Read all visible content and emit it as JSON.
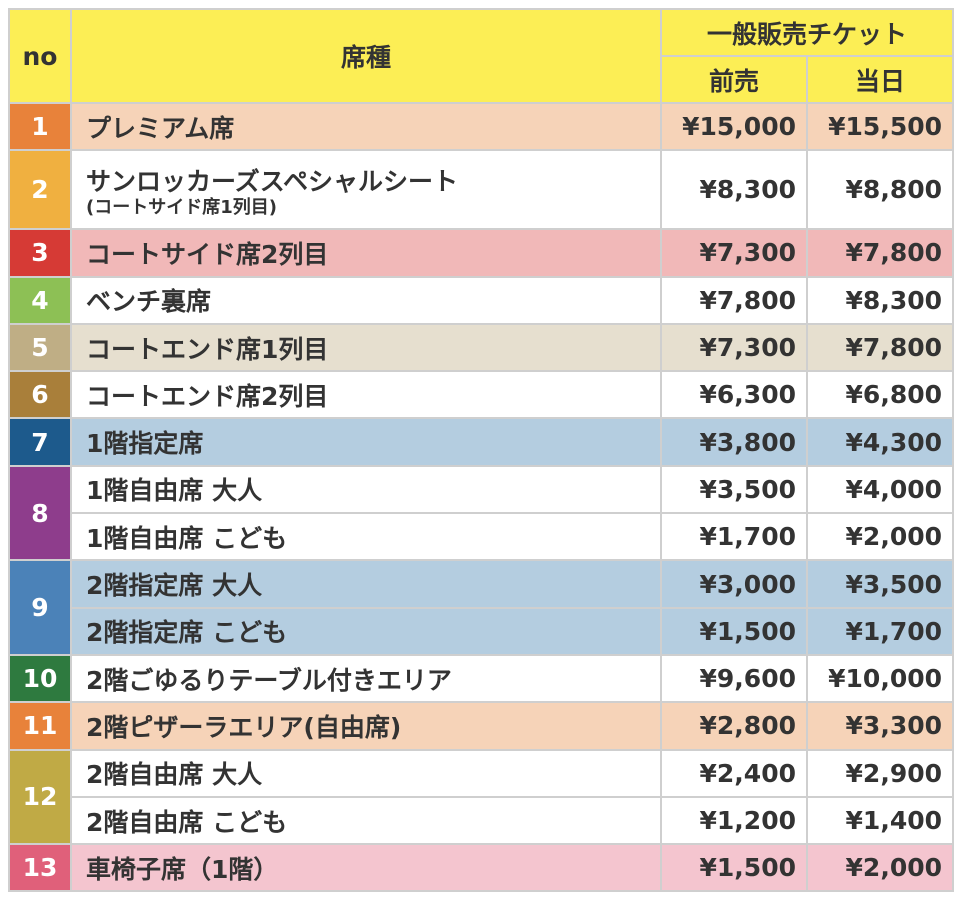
{
  "header": {
    "no": "no",
    "seat": "席種",
    "general": "一般販売チケット",
    "presale": "前売",
    "sameday": "当日"
  },
  "rows": [
    {
      "no": "1",
      "items": [
        {
          "seat": "プレミアム席",
          "presale": "¥15,000",
          "sameday": "¥15,500"
        }
      ]
    },
    {
      "no": "2",
      "items": [
        {
          "seat": "サンロッカーズスペシャルシート",
          "sub": "(コートサイド席1列目)",
          "presale": "¥8,300",
          "sameday": "¥8,800"
        }
      ]
    },
    {
      "no": "3",
      "items": [
        {
          "seat": "コートサイド席2列目",
          "presale": "¥7,300",
          "sameday": "¥7,800"
        }
      ]
    },
    {
      "no": "4",
      "items": [
        {
          "seat": "ベンチ裏席",
          "presale": "¥7,800",
          "sameday": "¥8,300"
        }
      ]
    },
    {
      "no": "5",
      "items": [
        {
          "seat": "コートエンド席1列目",
          "presale": "¥7,300",
          "sameday": "¥7,800"
        }
      ]
    },
    {
      "no": "6",
      "items": [
        {
          "seat": "コートエンド席2列目",
          "presale": "¥6,300",
          "sameday": "¥6,800"
        }
      ]
    },
    {
      "no": "7",
      "items": [
        {
          "seat": "1階指定席",
          "presale": "¥3,800",
          "sameday": "¥4,300"
        }
      ]
    },
    {
      "no": "8",
      "items": [
        {
          "seat": "1階自由席 大人",
          "presale": "¥3,500",
          "sameday": "¥4,000"
        },
        {
          "seat": "1階自由席 こども",
          "presale": "¥1,700",
          "sameday": "¥2,000"
        }
      ]
    },
    {
      "no": "9",
      "items": [
        {
          "seat": "2階指定席 大人",
          "presale": "¥3,000",
          "sameday": "¥3,500"
        },
        {
          "seat": "2階指定席 こども",
          "presale": "¥1,500",
          "sameday": "¥1,700"
        }
      ]
    },
    {
      "no": "10",
      "items": [
        {
          "seat": "2階ごゆるりテーブル付きエリア",
          "presale": "¥9,600",
          "sameday": "¥10,000"
        }
      ]
    },
    {
      "no": "11",
      "items": [
        {
          "seat": "2階ピザーラエリア(自由席)",
          "presale": "¥2,800",
          "sameday": "¥3,300"
        }
      ]
    },
    {
      "no": "12",
      "items": [
        {
          "seat": "2階自由席 大人",
          "presale": "¥2,400",
          "sameday": "¥2,900"
        },
        {
          "seat": "2階自由席 こども",
          "presale": "¥1,200",
          "sameday": "¥1,400"
        }
      ]
    },
    {
      "no": "13",
      "items": [
        {
          "seat": "車椅子席（1階）",
          "presale": "¥1,500",
          "sameday": "¥2,000"
        }
      ]
    }
  ]
}
